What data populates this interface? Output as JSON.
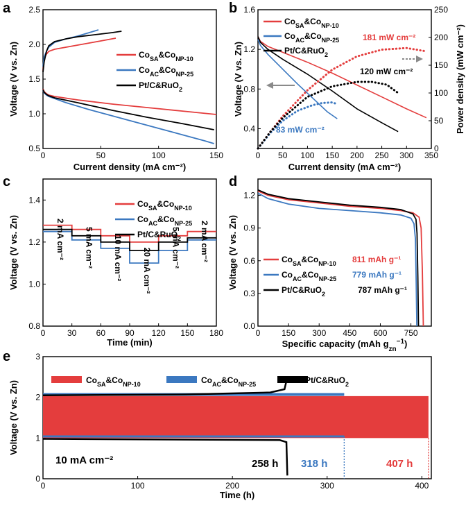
{
  "colors": {
    "red": "#e43d3d",
    "blue": "#3b78c0",
    "black": "#000000",
    "grey": "#8a8a8a"
  },
  "chart_data": [
    {
      "panel": "a",
      "type": "line",
      "xlabel": "Current density (mA cm⁻²)",
      "ylabel": "Voltage (V vs. Zn)",
      "xlim": [
        0,
        150
      ],
      "ylim": [
        0.5,
        2.5
      ],
      "xticks": [
        0,
        50,
        100,
        150
      ],
      "yticks": [
        0.5,
        1.0,
        1.5,
        2.0,
        2.5
      ],
      "legend": [
        {
          "base": "Co",
          "sub1": "SA",
          "mid": "&Co",
          "sub2": "NP-10",
          "color": "red"
        },
        {
          "base": "Co",
          "sub1": "AC",
          "mid": "&Co",
          "sub2": "NP-25",
          "color": "blue"
        },
        {
          "base": "Pt/C&RuO",
          "sub1": "2",
          "mid": "",
          "sub2": "",
          "color": "black"
        }
      ],
      "series": [
        {
          "name": "CoSA&CoNP-10 charge",
          "color": "red",
          "x": [
            0,
            1,
            3,
            5,
            10,
            20,
            30,
            40,
            50,
            63
          ],
          "y": [
            1.62,
            1.8,
            1.86,
            1.9,
            1.93,
            1.96,
            1.99,
            2.02,
            2.05,
            2.09
          ]
        },
        {
          "name": "CoSA&CoNP-10 discharge",
          "color": "red",
          "x": [
            0,
            1,
            3,
            5,
            10,
            30,
            60,
            90,
            120,
            150
          ],
          "y": [
            1.36,
            1.32,
            1.29,
            1.27,
            1.25,
            1.2,
            1.14,
            1.09,
            1.04,
            0.99
          ]
        },
        {
          "name": "CoAC&CoNP-25 charge",
          "color": "blue",
          "x": [
            0,
            1,
            3,
            5,
            10,
            20,
            30,
            40,
            48
          ],
          "y": [
            1.68,
            1.82,
            1.9,
            1.96,
            2.03,
            2.08,
            2.12,
            2.17,
            2.21
          ]
        },
        {
          "name": "CoAC&CoNP-25 discharge",
          "color": "blue",
          "x": [
            0,
            1,
            3,
            5,
            10,
            20,
            40,
            60,
            80,
            100,
            120,
            140,
            148
          ],
          "y": [
            1.34,
            1.3,
            1.27,
            1.25,
            1.22,
            1.16,
            1.06,
            0.97,
            0.88,
            0.79,
            0.7,
            0.61,
            0.57
          ]
        },
        {
          "name": "Pt/C&RuO2 charge",
          "color": "black",
          "x": [
            0,
            1,
            3,
            5,
            10,
            20,
            30,
            40,
            50,
            60,
            68
          ],
          "y": [
            1.6,
            1.75,
            1.9,
            1.98,
            2.04,
            2.08,
            2.11,
            2.13,
            2.15,
            2.17,
            2.19
          ]
        },
        {
          "name": "Pt/C&RuO2 discharge",
          "color": "black",
          "x": [
            0,
            1,
            3,
            5,
            10,
            30,
            60,
            90,
            120,
            148
          ],
          "y": [
            1.35,
            1.31,
            1.28,
            1.26,
            1.23,
            1.16,
            1.05,
            0.95,
            0.86,
            0.77
          ]
        }
      ]
    },
    {
      "panel": "b",
      "type": "line",
      "xlabel": "Current density (mA cm⁻²)",
      "ylabel": "Voltage (V vs. Zn)",
      "ylabel2": "Power density (mW cm⁻²)",
      "xlim": [
        0,
        350
      ],
      "ylim": [
        0.2,
        1.6
      ],
      "y2lim": [
        0,
        250
      ],
      "xticks": [
        0,
        50,
        100,
        150,
        200,
        250,
        300,
        350
      ],
      "yticks": [
        0.4,
        0.8,
        1.2,
        1.6
      ],
      "y2ticks": [
        0,
        50,
        100,
        150,
        200,
        250
      ],
      "legend": [
        {
          "base": "Co",
          "sub1": "SA",
          "mid": "&Co",
          "sub2": "NP-10",
          "color": "red"
        },
        {
          "base": "Co",
          "sub1": "AC",
          "mid": "&Co",
          "sub2": "NP-25",
          "color": "blue"
        },
        {
          "base": "Pt/C&RuO",
          "sub1": "2",
          "mid": "",
          "sub2": "",
          "color": "black"
        }
      ],
      "annotations": [
        "181 mW cm⁻²",
        "120 mW cm⁻²",
        "83 mW cm⁻²"
      ],
      "series": [
        {
          "name": "CoSA&CoNP-10 voltage",
          "color": "red",
          "axis": "left",
          "x": [
            0,
            5,
            20,
            50,
            100,
            150,
            200,
            250,
            300,
            340
          ],
          "y": [
            1.33,
            1.28,
            1.23,
            1.17,
            1.07,
            0.96,
            0.84,
            0.72,
            0.6,
            0.51
          ]
        },
        {
          "name": "CoAC&CoNP-25 voltage",
          "color": "blue",
          "axis": "left",
          "x": [
            0,
            5,
            20,
            50,
            80,
            110,
            140,
            160
          ],
          "y": [
            1.3,
            1.24,
            1.15,
            1.0,
            0.85,
            0.71,
            0.57,
            0.5
          ]
        },
        {
          "name": "Pt/C&RuO2 voltage",
          "color": "black",
          "axis": "left",
          "x": [
            0,
            5,
            20,
            50,
            100,
            150,
            200,
            250,
            283
          ],
          "y": [
            1.33,
            1.27,
            1.2,
            1.1,
            0.95,
            0.78,
            0.6,
            0.46,
            0.37
          ]
        },
        {
          "name": "CoSA&CoNP-10 power",
          "color": "red",
          "axis": "right",
          "dotted": true,
          "x": [
            0,
            25,
            50,
            100,
            150,
            200,
            250,
            300,
            340
          ],
          "y": [
            0,
            30,
            58,
            105,
            142,
            166,
            178,
            181,
            175
          ]
        },
        {
          "name": "CoAC&CoNP-25 power",
          "color": "blue",
          "axis": "right",
          "dotted": true,
          "x": [
            0,
            25,
            50,
            80,
            110,
            130,
            150,
            160
          ],
          "y": [
            0,
            28,
            50,
            68,
            78,
            82,
            83,
            80
          ]
        },
        {
          "name": "Pt/C&RuO2 power",
          "color": "black",
          "axis": "right",
          "dotted": true,
          "x": [
            0,
            25,
            50,
            100,
            150,
            200,
            230,
            260,
            283
          ],
          "y": [
            0,
            30,
            55,
            93,
            112,
            120,
            120,
            115,
            100
          ]
        }
      ]
    },
    {
      "panel": "c",
      "type": "line",
      "xlabel": "Time (min)",
      "ylabel": "Voltage (V vs. Zn)",
      "xlim": [
        0,
        180
      ],
      "ylim": [
        0.8,
        1.5
      ],
      "xticks": [
        0,
        30,
        60,
        90,
        120,
        150,
        180
      ],
      "yticks": [
        0.8,
        1.0,
        1.2,
        1.4
      ],
      "segment_labels": [
        "2 mA cm⁻²",
        "5 mA cm⁻²",
        "10 mA cm⁻²",
        "20 mA cm⁻²",
        "5 mA cm⁻²",
        "2 mA cm⁻²"
      ],
      "legend": [
        {
          "base": "Co",
          "sub1": "SA",
          "mid": "&Co",
          "sub2": "NP-10",
          "color": "red"
        },
        {
          "base": "Co",
          "sub1": "AC",
          "mid": "&Co",
          "sub2": "NP-25",
          "color": "blue"
        },
        {
          "base": "Pt/C&RuO",
          "sub1": "2",
          "mid": "",
          "sub2": "",
          "color": "black"
        }
      ],
      "series": [
        {
          "name": "CoSA&CoNP-10",
          "color": "red",
          "x": [
            0,
            30,
            30,
            60,
            60,
            90,
            90,
            120,
            120,
            150,
            150,
            180
          ],
          "y": [
            1.28,
            1.28,
            1.26,
            1.26,
            1.23,
            1.23,
            1.2,
            1.2,
            1.23,
            1.23,
            1.25,
            1.25
          ]
        },
        {
          "name": "CoAC&CoNP-25",
          "color": "blue",
          "x": [
            0,
            30,
            30,
            60,
            60,
            90,
            90,
            120,
            120,
            150,
            150,
            180
          ],
          "y": [
            1.25,
            1.25,
            1.21,
            1.21,
            1.17,
            1.17,
            1.1,
            1.1,
            1.16,
            1.16,
            1.21,
            1.21
          ]
        },
        {
          "name": "Pt/C&RuO2",
          "color": "black",
          "x": [
            0,
            30,
            30,
            60,
            60,
            90,
            90,
            120,
            120,
            150,
            150,
            180
          ],
          "y": [
            1.26,
            1.26,
            1.23,
            1.23,
            1.2,
            1.2,
            1.16,
            1.16,
            1.2,
            1.2,
            1.22,
            1.22
          ]
        }
      ]
    },
    {
      "panel": "d",
      "type": "line",
      "xlabel": "Specific capacity (mAh g",
      "xlabel_sub": "zn",
      "xlabel_sup": "−1",
      "xlabel_end": ")",
      "ylabel": "Voltage (V vs. Zn)",
      "xlim": [
        0,
        850
      ],
      "ylim": [
        0,
        1.35
      ],
      "xticks": [
        0,
        150,
        300,
        450,
        600,
        750
      ],
      "yticks": [
        0.0,
        0.3,
        0.6,
        0.9,
        1.2
      ],
      "legend": [
        {
          "base": "Co",
          "sub1": "SA",
          "mid": "&Co",
          "sub2": "NP-10",
          "value": "811 mAh g⁻¹",
          "color": "red"
        },
        {
          "base": "Co",
          "sub1": "AC",
          "mid": "&Co",
          "sub2": "NP-25",
          "value": "779 mAh g⁻¹",
          "color": "blue"
        },
        {
          "base": "Pt/C&RuO",
          "sub1": "2",
          "mid": "",
          "sub2": "",
          "value": "787 mAh g⁻¹",
          "color": "black"
        }
      ],
      "series": [
        {
          "name": "CoSA&CoNP-10",
          "color": "red",
          "x": [
            0,
            50,
            150,
            300,
            450,
            600,
            700,
            760,
            790,
            800,
            806,
            811
          ],
          "y": [
            1.24,
            1.2,
            1.16,
            1.13,
            1.1,
            1.08,
            1.06,
            1.04,
            1.0,
            0.9,
            0.5,
            0.0
          ]
        },
        {
          "name": "CoAC&CoNP-25",
          "color": "blue",
          "x": [
            0,
            50,
            150,
            300,
            450,
            600,
            700,
            750,
            765,
            772,
            776,
            779
          ],
          "y": [
            1.22,
            1.17,
            1.12,
            1.08,
            1.06,
            1.04,
            1.02,
            0.99,
            0.94,
            0.8,
            0.4,
            0.0
          ]
        },
        {
          "name": "Pt/C&RuO2",
          "color": "black",
          "x": [
            0,
            50,
            150,
            300,
            450,
            600,
            700,
            760,
            775,
            780,
            784,
            787
          ],
          "y": [
            1.25,
            1.21,
            1.17,
            1.14,
            1.11,
            1.09,
            1.07,
            1.03,
            0.98,
            0.85,
            0.45,
            0.0
          ]
        }
      ]
    },
    {
      "panel": "e",
      "type": "area",
      "xlabel": "Time (h)",
      "ylabel": "Voltage (V vs. Zn)",
      "xlim": [
        0,
        410
      ],
      "ylim": [
        0,
        3
      ],
      "xticks": [
        0,
        100,
        200,
        300,
        400
      ],
      "yticks": [
        0,
        1,
        2,
        3
      ],
      "current_label": "10 mA cm⁻²",
      "legend": [
        {
          "base": "Co",
          "sub1": "SA",
          "mid": "&Co",
          "sub2": "NP-10",
          "color": "red"
        },
        {
          "base": "Co",
          "sub1": "AC",
          "mid": "&Co",
          "sub2": "NP-25",
          "color": "blue"
        },
        {
          "base": "Pt/C&RuO",
          "sub1": "2",
          "mid": "",
          "sub2": "",
          "color": "black"
        }
      ],
      "bands": [
        {
          "name": "Pt/C&RuO2",
          "color": "black",
          "x_end": 258,
          "y_low": 0.98,
          "y_high": 2.08,
          "label": "258 h"
        },
        {
          "name": "CoAC&CoNP-25",
          "color": "blue",
          "x_end": 318,
          "y_low": 1.04,
          "y_high": 2.07,
          "label": "318 h"
        },
        {
          "name": "CoSA&CoNP-10",
          "color": "red",
          "x_end": 407,
          "y_low": 1.0,
          "y_high": 2.03,
          "label": "407 h"
        }
      ]
    }
  ]
}
